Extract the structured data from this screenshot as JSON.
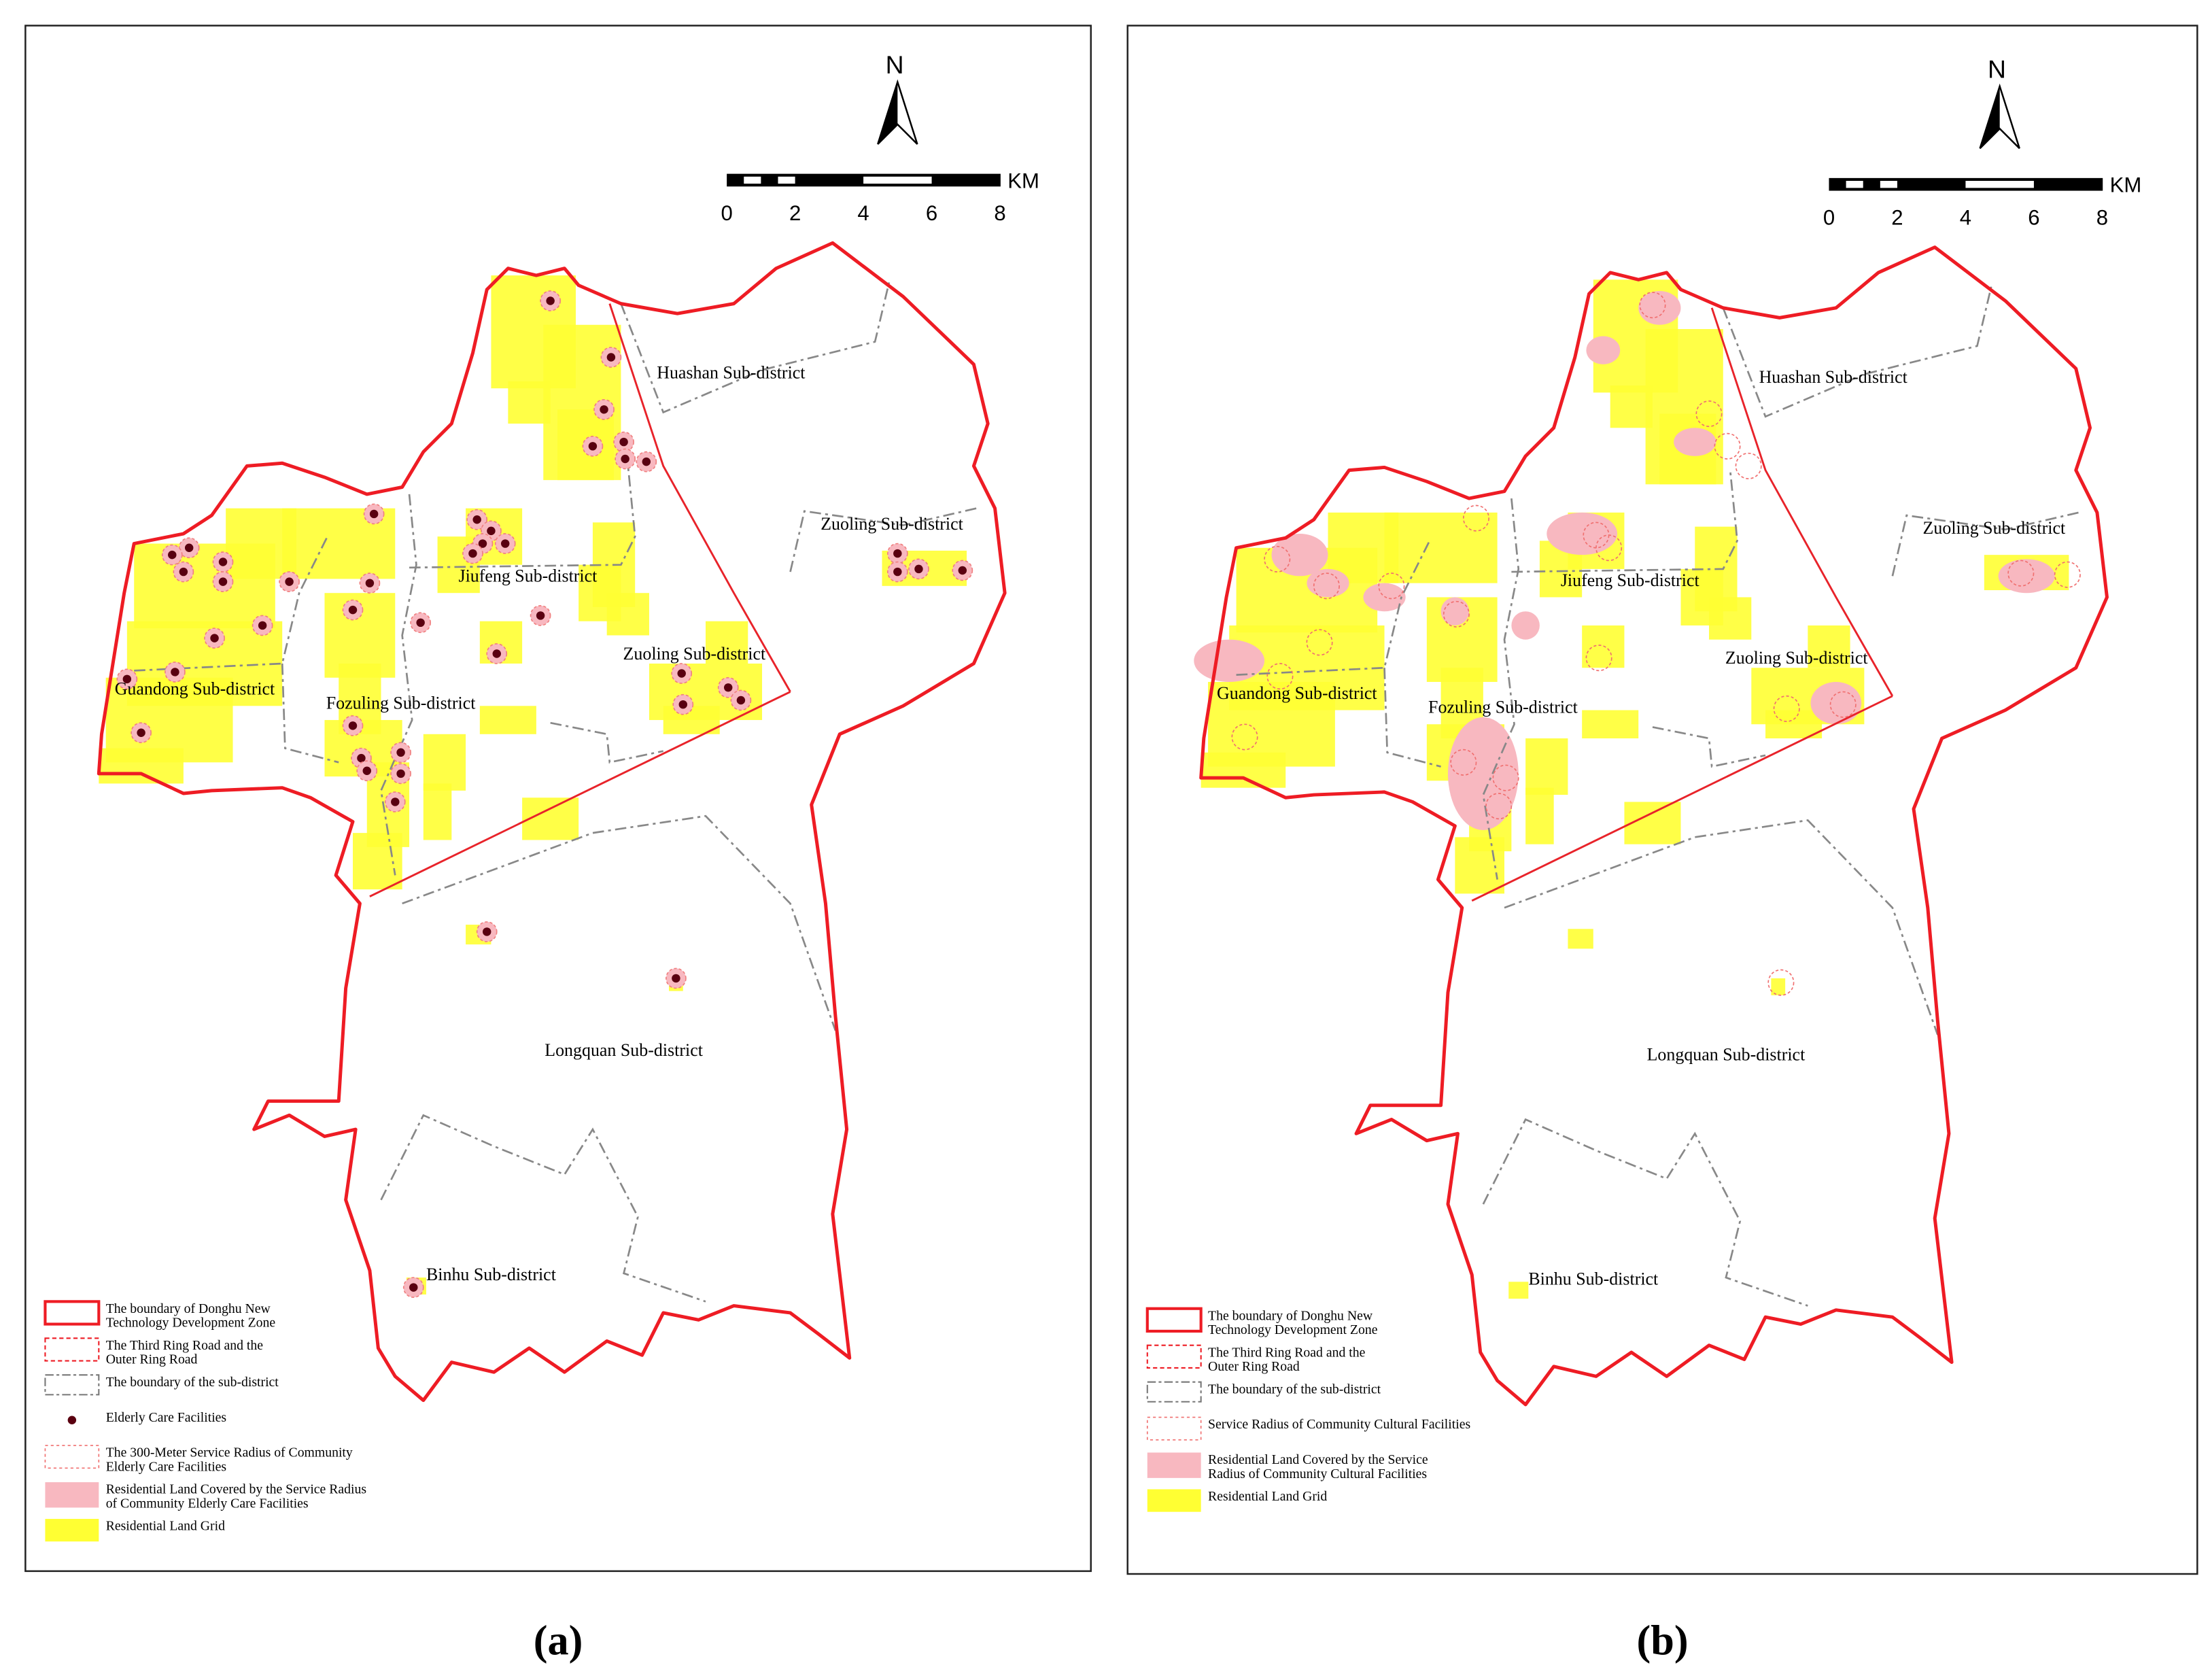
{
  "panels": [
    {
      "caption": "(a)",
      "north": "N",
      "scale_ticks": [
        0,
        2,
        4,
        6,
        8
      ],
      "scale_unit": "KM",
      "districts": [
        "Huashan Sub-district",
        "Zuoling Sub-district",
        "Jiufeng Sub-district",
        "Zuoling Sub-district",
        "Guandong Sub-district",
        "Fozuling Sub-district",
        "Longquan Sub-district",
        "Binhu Sub-district"
      ],
      "legend": [
        [
          "The boundary of Donghu New",
          "Technology Development Zone"
        ],
        [
          "The Third Ring Road and the",
          "Outer Ring Road"
        ],
        [
          "The boundary of the sub-district"
        ],
        [
          "Elderly Care Facilities"
        ],
        [
          "The 300-Meter Service Radius of Community",
          "Elderly Care Facilities"
        ],
        [
          "Residential Land Covered by the Service Radius",
          "of Community Elderly Care Facilities"
        ],
        [
          "Residential Land Grid"
        ]
      ]
    },
    {
      "caption": "(b)",
      "north": "N",
      "scale_ticks": [
        0,
        2,
        4,
        6,
        8
      ],
      "scale_unit": "KM",
      "districts": [
        "Huashan Sub-district",
        "Zuoling Sub-district",
        "Jiufeng Sub-district",
        "Zuoling Sub-district",
        "Guandong Sub-district",
        "Fozuling Sub-district",
        "Longquan Sub-district",
        "Binhu Sub-district"
      ],
      "legend": [
        [
          "The boundary of Donghu New",
          "Technology Development Zone"
        ],
        [
          "The Third Ring Road and the",
          "Outer Ring Road"
        ],
        [
          "The boundary of the sub-district"
        ],
        [
          "Service Radius of Community Cultural Facilities"
        ],
        [
          "Residential Land Covered by the Service",
          "Radius of Community Cultural Facilities"
        ],
        [
          "Residential Land Grid"
        ]
      ]
    }
  ]
}
